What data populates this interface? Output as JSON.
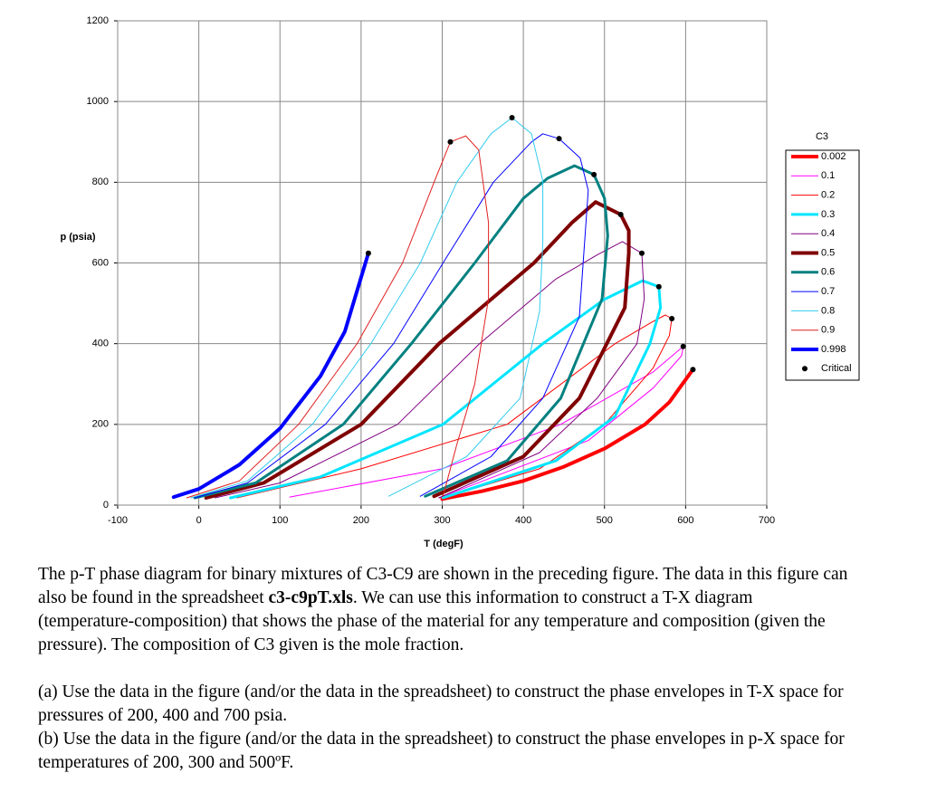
{
  "chart_data": {
    "type": "line",
    "title": "C3",
    "xlabel": "T (degF)",
    "ylabel": "p (psia)",
    "xlim": [
      -100,
      700
    ],
    "xticks": [
      -100,
      0,
      100,
      200,
      300,
      400,
      500,
      600,
      700
    ],
    "ylim": [
      0,
      1200
    ],
    "yticks": [
      0,
      200,
      400,
      600,
      800,
      1000,
      1200
    ],
    "grid": true,
    "legend": "right",
    "series": [
      {
        "name": "0.002",
        "color": "#ff0000",
        "line_width": 4,
        "x": [
          300,
          350,
          400,
          450,
          500,
          550,
          580,
          609
        ],
        "values": [
          15,
          35,
          60,
          95,
          140,
          200,
          255,
          336
        ]
      },
      {
        "name": "0.1",
        "color": "#ff00ff",
        "line_width": 1,
        "x": [
          112,
          300,
          446,
          560,
          597,
          595,
          560,
          480,
          296
        ],
        "values": [
          20,
          90,
          200,
          330,
          393,
          370,
          290,
          160,
          18
        ]
      },
      {
        "name": "0.2",
        "color": "#ff0000",
        "line_width": 1,
        "x": [
          47,
          200,
          380,
          513,
          560,
          575,
          583,
          580,
          560,
          500,
          420,
          301
        ],
        "values": [
          18,
          90,
          200,
          400,
          455,
          471,
          462,
          420,
          340,
          200,
          90,
          18
        ]
      },
      {
        "name": "0.3",
        "color": "#00e5ff",
        "line_width": 3,
        "x": [
          39,
          150,
          301,
          424,
          500,
          547,
          567,
          569,
          556,
          513,
          440,
          301
        ],
        "values": [
          18,
          70,
          200,
          400,
          510,
          556,
          541,
          489,
          400,
          220,
          110,
          18
        ]
      },
      {
        "name": "0.4",
        "color": "#800080",
        "line_width": 1,
        "x": [
          20,
          100,
          245,
          346,
          440,
          491,
          522,
          546,
          549,
          540,
          491,
          420,
          296
        ],
        "values": [
          18,
          55,
          200,
          400,
          560,
          620,
          653,
          624,
          511,
          400,
          265,
          130,
          18
        ]
      },
      {
        "name": "0.5",
        "color": "#7f0000",
        "line_width": 4,
        "x": [
          9,
          80,
          200,
          296,
          413,
          460,
          489,
          520,
          530,
          530,
          525,
          469,
          400,
          290
        ],
        "values": [
          18,
          55,
          200,
          400,
          600,
          700,
          751,
          720,
          680,
          624,
          489,
          265,
          120,
          22
        ]
      },
      {
        "name": "0.6",
        "color": "#008080",
        "line_width": 3,
        "x": [
          -5,
          70,
          178,
          262,
          340,
          400,
          430,
          463,
          487,
          500,
          504,
          497,
          446,
          380,
          279
        ],
        "values": [
          18,
          55,
          200,
          400,
          600,
          760,
          810,
          841,
          819,
          760,
          668,
          511,
          265,
          110,
          22
        ]
      },
      {
        "name": "0.7",
        "color": "#0000ff",
        "line_width": 1,
        "x": [
          -5,
          60,
          156,
          240,
          301,
          363,
          410,
          424,
          444,
          470,
          480,
          469,
          424,
          360,
          273
        ],
        "values": [
          18,
          55,
          200,
          400,
          600,
          800,
          900,
          920,
          908,
          860,
          780,
          467,
          265,
          120,
          22
        ]
      },
      {
        "name": "0.8",
        "color": "#33ccee",
        "line_width": 1,
        "x": [
          -10,
          60,
          140,
          212,
          273,
          318,
          360,
          386,
          410,
          424,
          424,
          420,
          396,
          330,
          234
        ],
        "values": [
          18,
          60,
          200,
          400,
          600,
          800,
          920,
          960,
          920,
          803,
          650,
          480,
          265,
          120,
          22
        ]
      },
      {
        "name": "0.9",
        "color": "#e02020",
        "line_width": 1,
        "x": [
          -15,
          50,
          123,
          195,
          251,
          290,
          310,
          329,
          345,
          357,
          357,
          340,
          318,
          301
        ],
        "values": [
          18,
          60,
          200,
          400,
          600,
          800,
          900,
          915,
          880,
          700,
          511,
          300,
          150,
          22
        ]
      },
      {
        "name": "0.998",
        "color": "#0000ff",
        "line_width": 4,
        "x": [
          -31,
          0,
          50,
          100,
          150,
          180,
          209
        ],
        "values": [
          20,
          40,
          100,
          190,
          320,
          430,
          624
        ]
      }
    ],
    "critical": {
      "name": "Critical",
      "color": "#000000",
      "x": [
        209,
        310,
        386,
        444,
        487,
        520,
        546,
        567,
        583,
        597,
        609
      ],
      "values": [
        624,
        900,
        960,
        908,
        819,
        720,
        624,
        541,
        462,
        393,
        336
      ]
    }
  },
  "document": {
    "paragraph_1": [
      "The p-T phase diagram for binary mixtures of C3-C9 are shown in the preceding figure.  The data in this figure can also be found in the spreadsheet ",
      "c3-c9pT.xls",
      ".  We can use this information to construct a T-X diagram (temperature-composition) that shows the phase of the material for any temperature and composition (given the pressure).  The composition of C3 given is the mole fraction."
    ],
    "item_a": "(a) Use the data in the figure (and/or the data in the spreadsheet) to construct the phase envelopes in T-X space for pressures of 200, 400 and 700 psia.",
    "item_b": "(b) Use the data in the figure (and/or the data in the spreadsheet) to construct the phase envelopes in p-X space for temperatures of 200, 300 and 500ºF."
  }
}
